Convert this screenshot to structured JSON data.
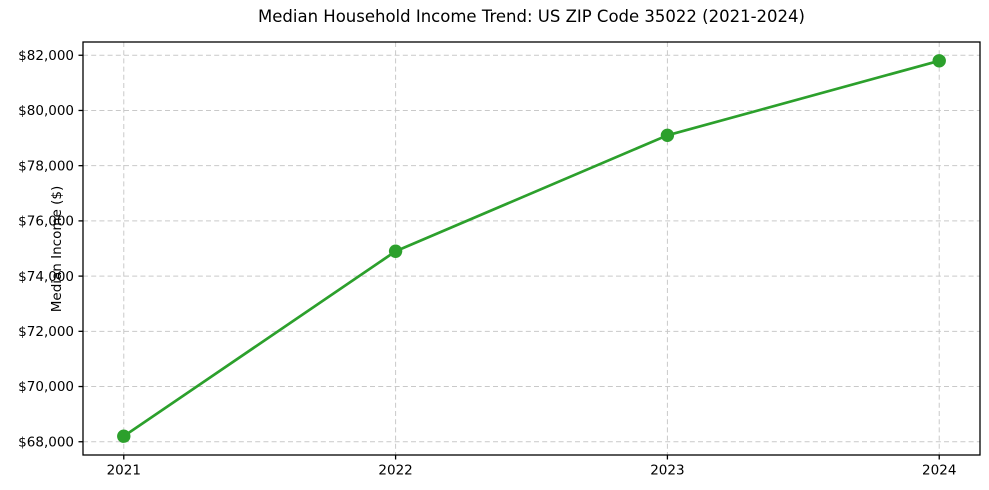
{
  "chart_data": {
    "type": "line",
    "title": "Median Household Income Trend: US ZIP Code 35022 (2021-2024)",
    "xlabel": "",
    "ylabel": "Median Income ($)",
    "x": [
      2021,
      2022,
      2023,
      2024
    ],
    "categories": [
      "2021",
      "2022",
      "2023",
      "2024"
    ],
    "series": [
      {
        "name": "Median Household Income",
        "values": [
          68200,
          74900,
          79100,
          81800
        ]
      }
    ],
    "xlim": [
      2020.85,
      2024.15
    ],
    "ylim": [
      67520,
      82480
    ],
    "xticks": {
      "values": [
        2021,
        2022,
        2023,
        2024
      ],
      "labels": [
        "2021",
        "2022",
        "2023",
        "2024"
      ]
    },
    "yticks": {
      "values": [
        68000,
        70000,
        72000,
        74000,
        76000,
        78000,
        80000,
        82000
      ],
      "labels": [
        "$68,000",
        "$70,000",
        "$72,000",
        "$74,000",
        "$76,000",
        "$78,000",
        "$80,000",
        "$82,000"
      ]
    },
    "grid": true,
    "grid_style": "dashed",
    "legend": "none",
    "marker": "circle",
    "colors": {
      "line": "#2ca02c",
      "marker": "#2ca02c",
      "grid": "#c9c9c9",
      "spine": "#000000",
      "background": "#ffffff"
    }
  }
}
